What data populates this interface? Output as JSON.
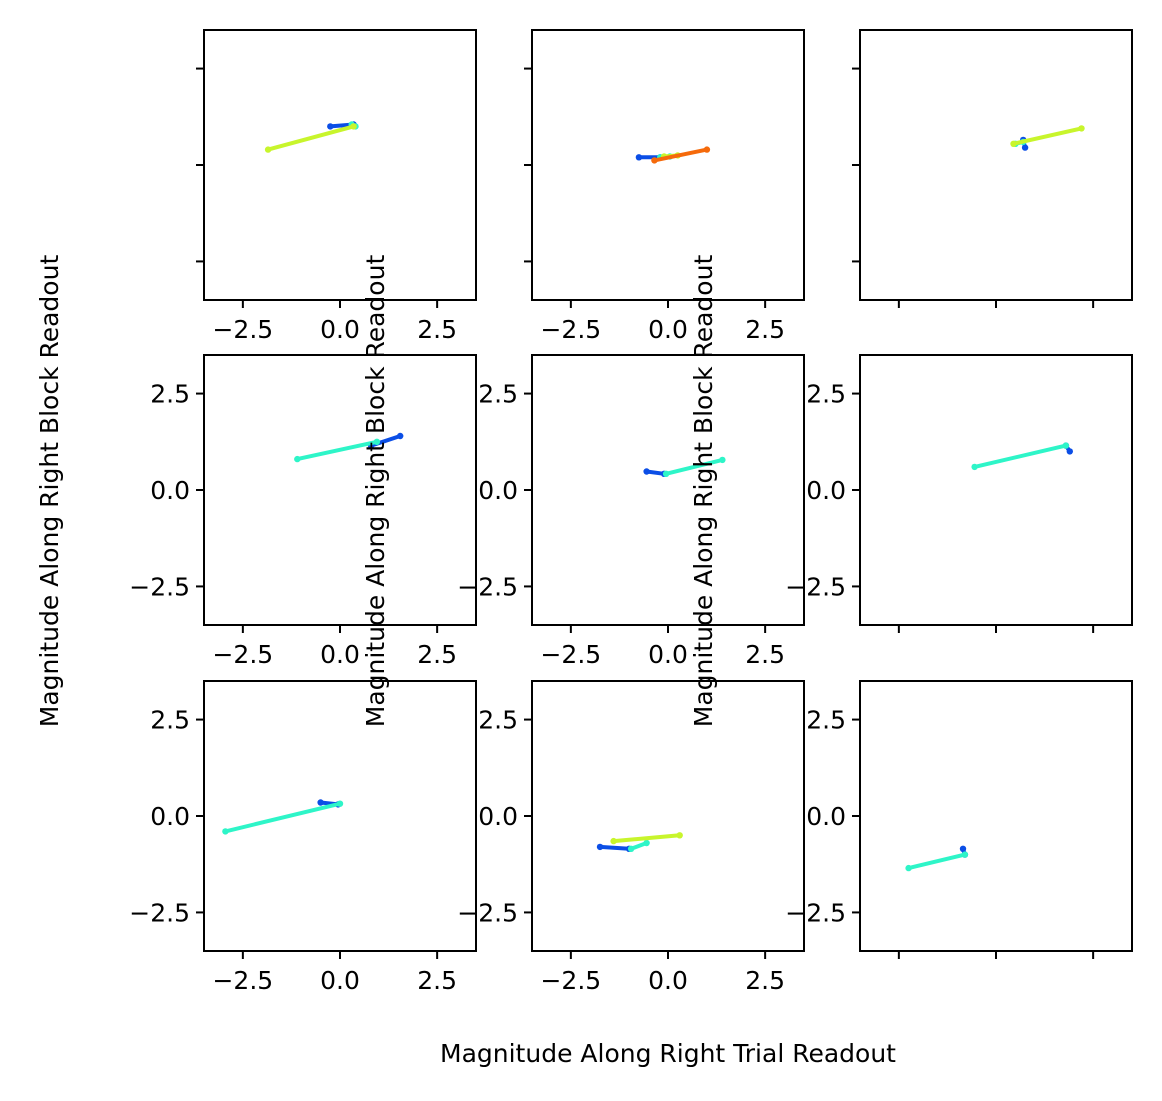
{
  "figure": {
    "ylabel": "Magnitude Along Right Block Readout",
    "xlabel": "Magnitude Along Right Trial Readout"
  },
  "colors": {
    "blue": "#0b4ee6",
    "cyan": "#2ef5c8",
    "lime": "#c8f52c",
    "orange": "#f56a0b",
    "frame": "#000000"
  },
  "chart_data": [
    {
      "type": "line",
      "panel": "row1-col1",
      "xlim": [
        -3.5,
        3.5
      ],
      "ylim": [
        -3.5,
        3.5
      ],
      "xticks": [
        -2.5,
        0.0,
        2.5
      ],
      "xticklabels": [
        "−2.5",
        "0.0",
        "2.5"
      ],
      "yticks": [
        -2.5,
        0.0,
        2.5
      ],
      "yticklabels": [],
      "series": [
        {
          "color": "blue",
          "x": [
            -0.25,
            0.35
          ],
          "y": [
            1.0,
            1.05
          ]
        },
        {
          "color": "cyan",
          "x": [
            0.3,
            0.4
          ],
          "y": [
            1.05,
            1.0
          ]
        },
        {
          "color": "lime",
          "x": [
            -1.85,
            0.35
          ],
          "y": [
            0.4,
            1.0
          ]
        }
      ]
    },
    {
      "type": "line",
      "panel": "row1-col2",
      "xlim": [
        -3.5,
        3.5
      ],
      "ylim": [
        -3.5,
        3.5
      ],
      "xticks": [
        -2.5,
        0.0,
        2.5
      ],
      "xticklabels": [
        "−2.5",
        "0.0",
        "2.5"
      ],
      "yticks": [
        -2.5,
        0.0,
        2.5
      ],
      "yticklabels": [],
      "series": [
        {
          "color": "blue",
          "x": [
            -0.75,
            -0.2
          ],
          "y": [
            0.2,
            0.2
          ]
        },
        {
          "color": "cyan",
          "x": [
            -0.2,
            0.05
          ],
          "y": [
            0.2,
            0.22
          ]
        },
        {
          "color": "lime",
          "x": [
            -0.1,
            0.25
          ],
          "y": [
            0.22,
            0.25
          ]
        },
        {
          "color": "orange",
          "x": [
            -0.35,
            1.0
          ],
          "y": [
            0.12,
            0.4
          ]
        }
      ]
    },
    {
      "type": "line",
      "panel": "row1-col3",
      "xlim": [
        -3.5,
        3.5
      ],
      "ylim": [
        -3.5,
        3.5
      ],
      "xticks": [
        -2.5,
        0.0,
        2.5
      ],
      "xticklabels": [],
      "yticks": [
        -2.5,
        0.0,
        2.5
      ],
      "yticklabels": [],
      "series": [
        {
          "color": "blue",
          "x": [
            0.7,
            0.75
          ],
          "y": [
            0.65,
            0.45
          ]
        },
        {
          "color": "cyan",
          "x": [
            0.5,
            0.7
          ],
          "y": [
            0.55,
            0.6
          ]
        },
        {
          "color": "lime",
          "x": [
            0.45,
            2.2
          ],
          "y": [
            0.55,
            0.95
          ]
        }
      ]
    },
    {
      "type": "line",
      "panel": "row2-col1",
      "xlim": [
        -3.5,
        3.5
      ],
      "ylim": [
        -3.5,
        3.5
      ],
      "xticks": [
        -2.5,
        0.0,
        2.5
      ],
      "xticklabels": [
        "−2.5",
        "0.0",
        "2.5"
      ],
      "yticks": [
        -2.5,
        0.0,
        2.5
      ],
      "yticklabels": [
        "−2.5",
        "0.0",
        "2.5"
      ],
      "series": [
        {
          "color": "blue",
          "x": [
            0.8,
            1.55
          ],
          "y": [
            1.15,
            1.4
          ]
        },
        {
          "color": "cyan",
          "x": [
            -1.1,
            0.95
          ],
          "y": [
            0.8,
            1.25
          ]
        }
      ]
    },
    {
      "type": "line",
      "panel": "row2-col2",
      "xlim": [
        -3.5,
        3.5
      ],
      "ylim": [
        -3.5,
        3.5
      ],
      "xticks": [
        -2.5,
        0.0,
        2.5
      ],
      "xticklabels": [
        "−2.5",
        "0.0",
        "2.5"
      ],
      "yticks": [
        -2.5,
        0.0,
        2.5
      ],
      "yticklabels": [
        "−2.5",
        "0.0",
        "2.5"
      ],
      "series": [
        {
          "color": "blue",
          "x": [
            -0.55,
            -0.1
          ],
          "y": [
            0.48,
            0.42
          ]
        },
        {
          "color": "cyan",
          "x": [
            -0.05,
            1.4
          ],
          "y": [
            0.42,
            0.78
          ]
        }
      ]
    },
    {
      "type": "line",
      "panel": "row2-col3",
      "xlim": [
        -3.5,
        3.5
      ],
      "ylim": [
        -3.5,
        3.5
      ],
      "xticks": [
        -2.5,
        0.0,
        2.5
      ],
      "xticklabels": [],
      "yticks": [
        -2.5,
        0.0,
        2.5
      ],
      "yticklabels": [
        "−2.5",
        "0.0",
        "2.5"
      ],
      "series": [
        {
          "color": "blue",
          "x": [
            1.8,
            1.9
          ],
          "y": [
            1.15,
            1.0
          ]
        },
        {
          "color": "cyan",
          "x": [
            -0.55,
            1.8
          ],
          "y": [
            0.6,
            1.15
          ]
        }
      ]
    },
    {
      "type": "line",
      "panel": "row3-col1",
      "xlim": [
        -3.5,
        3.5
      ],
      "ylim": [
        -3.5,
        3.5
      ],
      "xticks": [
        -2.5,
        0.0,
        2.5
      ],
      "xticklabels": [
        "−2.5",
        "0.0",
        "2.5"
      ],
      "yticks": [
        -2.5,
        0.0,
        2.5
      ],
      "yticklabels": [
        "−2.5",
        "0.0",
        "2.5"
      ],
      "series": [
        {
          "color": "blue",
          "x": [
            -0.5,
            -0.05
          ],
          "y": [
            0.35,
            0.3
          ]
        },
        {
          "color": "cyan",
          "x": [
            -2.95,
            0.0
          ],
          "y": [
            -0.4,
            0.32
          ]
        }
      ]
    },
    {
      "type": "line",
      "panel": "row3-col2",
      "xlim": [
        -3.5,
        3.5
      ],
      "ylim": [
        -3.5,
        3.5
      ],
      "xticks": [
        -2.5,
        0.0,
        2.5
      ],
      "xticklabels": [
        "−2.5",
        "0.0",
        "2.5"
      ],
      "yticks": [
        -2.5,
        0.0,
        2.5
      ],
      "yticklabels": [
        "−2.5",
        "0.0",
        "2.5"
      ],
      "series": [
        {
          "color": "blue",
          "x": [
            -1.75,
            -1.0
          ],
          "y": [
            -0.8,
            -0.85
          ]
        },
        {
          "color": "cyan",
          "x": [
            -0.95,
            -0.55
          ],
          "y": [
            -0.85,
            -0.7
          ]
        },
        {
          "color": "lime",
          "x": [
            -1.4,
            0.3
          ],
          "y": [
            -0.65,
            -0.5
          ]
        }
      ]
    },
    {
      "type": "line",
      "panel": "row3-col3",
      "xlim": [
        -3.5,
        3.5
      ],
      "ylim": [
        -3.5,
        3.5
      ],
      "xticks": [
        -2.5,
        0.0,
        2.5
      ],
      "xticklabels": [],
      "yticks": [
        -2.5,
        0.0,
        2.5
      ],
      "yticklabels": [
        "−2.5",
        "0.0",
        "2.5"
      ],
      "series": [
        {
          "color": "blue",
          "x": [
            -0.85,
            -0.8
          ],
          "y": [
            -0.85,
            -1.0
          ]
        },
        {
          "color": "cyan",
          "x": [
            -2.25,
            -0.8
          ],
          "y": [
            -1.35,
            -1.0
          ]
        }
      ]
    }
  ]
}
